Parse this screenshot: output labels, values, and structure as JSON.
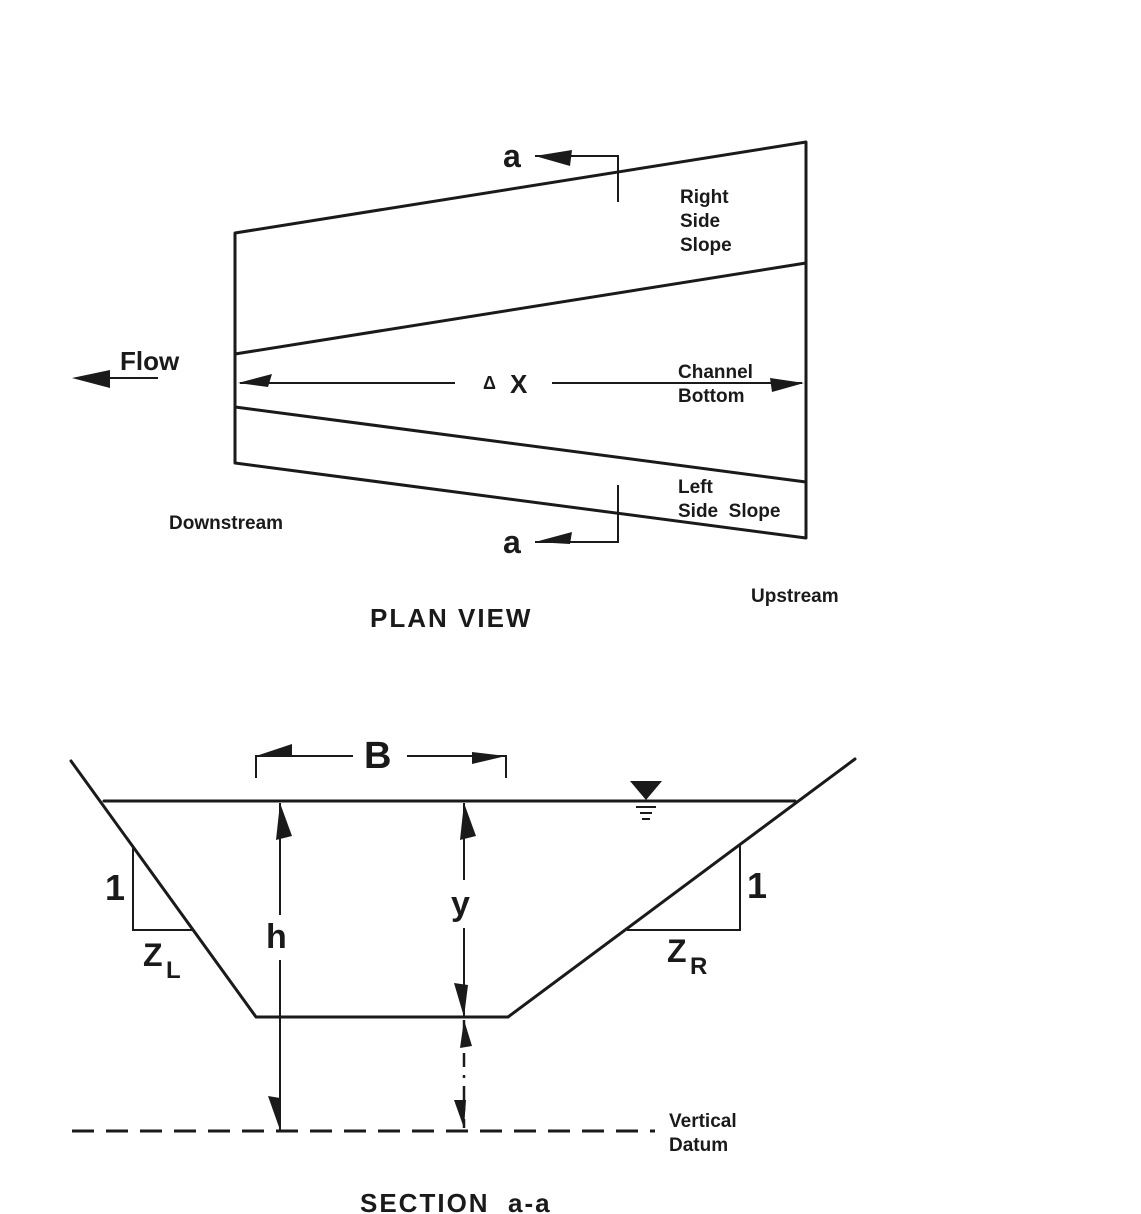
{
  "plan_view": {
    "title": "PLAN VIEW",
    "flow_label": "Flow",
    "section_mark": "a",
    "right_side_slope": [
      "Right",
      "Side",
      "Slope"
    ],
    "channel_bottom": [
      "Channel",
      "Bottom"
    ],
    "left_side_slope": [
      "Left",
      "Side  Slope"
    ],
    "delta_x_symbol": "Δ",
    "delta_x_var": "X",
    "downstream_label": "Downstream",
    "upstream_label": "Upstream"
  },
  "section_view": {
    "title": "SECTION  a-a",
    "b_label": "B",
    "h_label": "h",
    "y_label": "y",
    "slope_rise_left": "1",
    "slope_rise_right": "1",
    "zl_base": "Z",
    "zl_sub": "L",
    "zr_base": "Z",
    "zr_sub": "R",
    "datum_label": [
      "Vertical",
      "Datum"
    ]
  },
  "colors": {
    "ink": "#1a1a1a",
    "paper": "#ffffff"
  }
}
